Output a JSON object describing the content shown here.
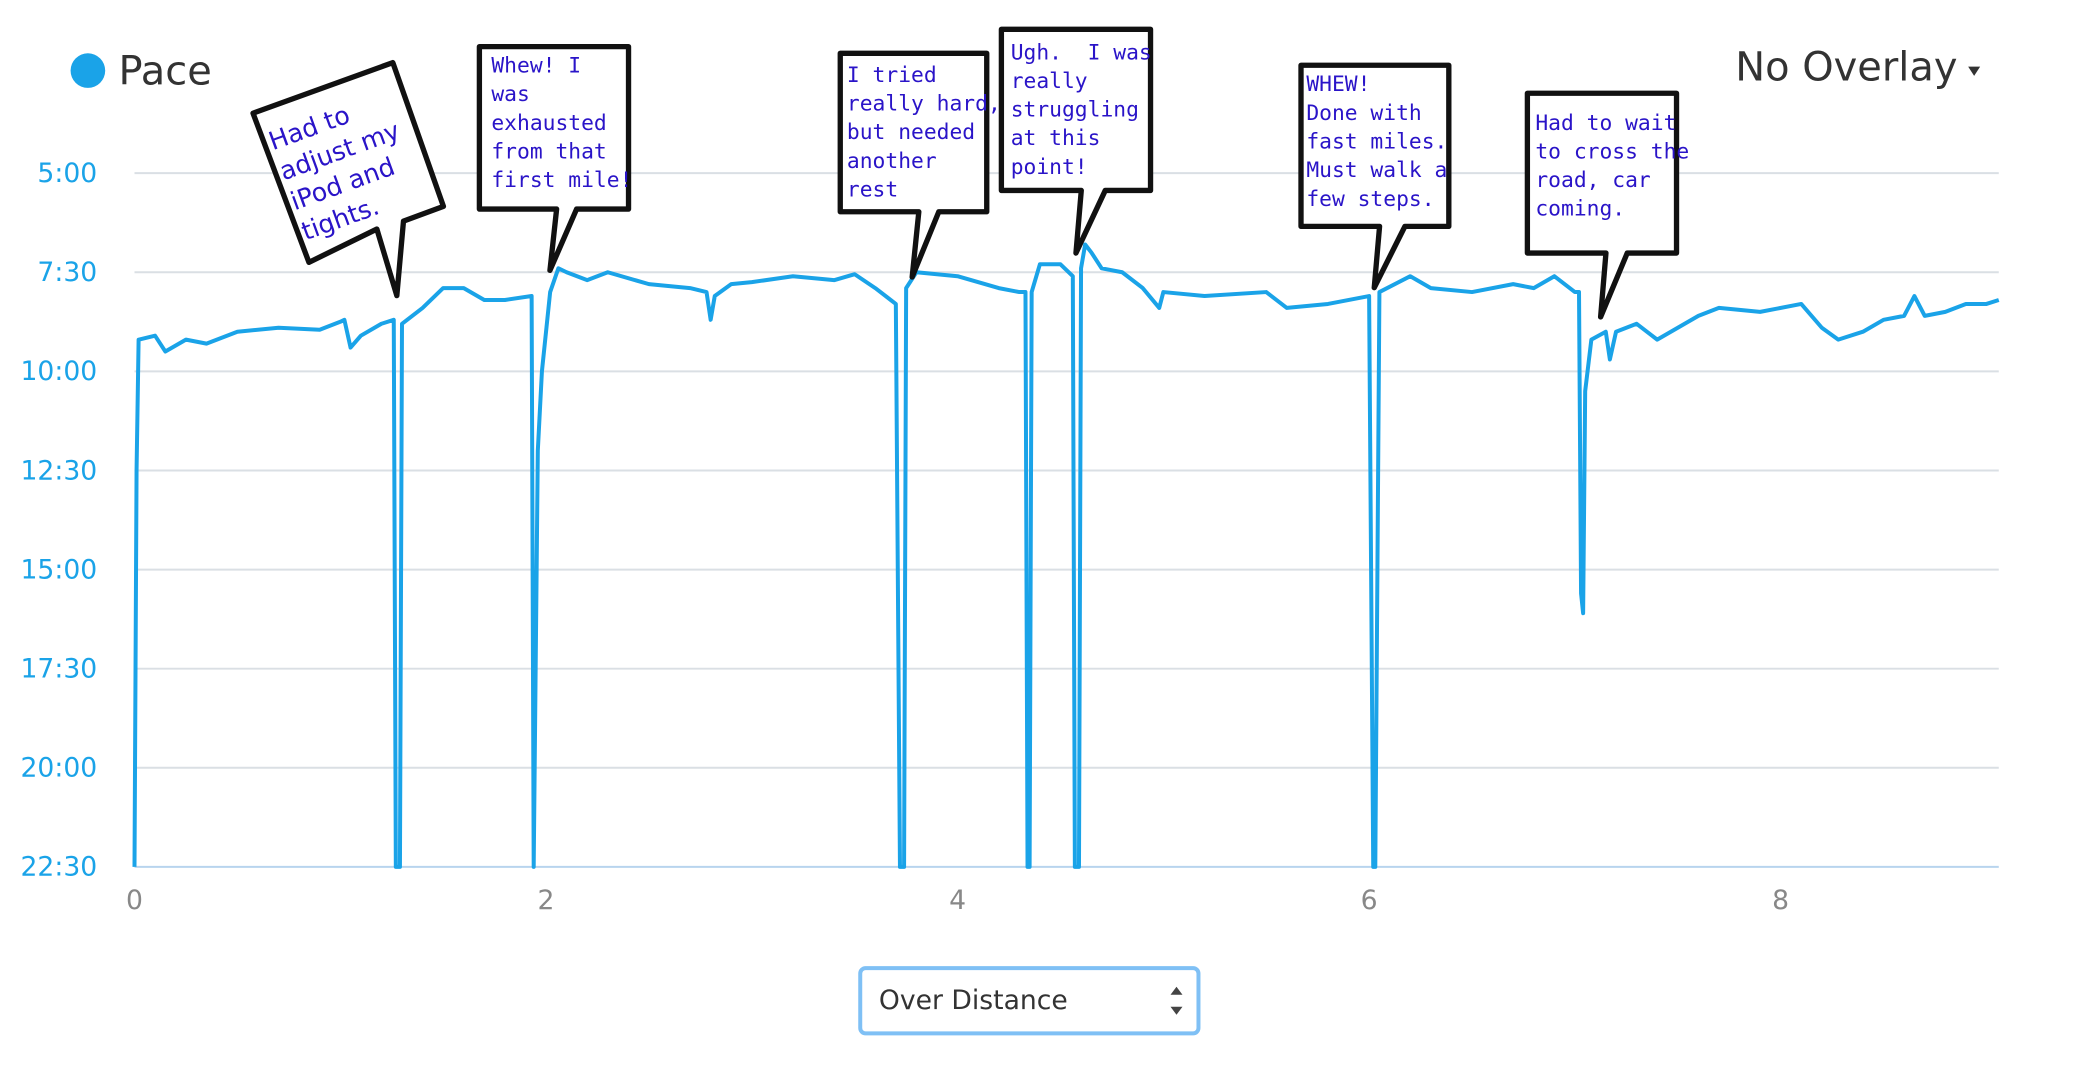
{
  "chart_data": {
    "type": "line",
    "overlay": "No Overlay",
    "view_selector": "Over Distance",
    "x": [
      0,
      0.01,
      0.02,
      0.1,
      0.15,
      0.25,
      0.35,
      0.5,
      0.7,
      0.9,
      1.0,
      1.02,
      1.05,
      1.1,
      1.2,
      1.26,
      1.27,
      1.29,
      1.3,
      1.4,
      1.5,
      1.6,
      1.7,
      1.8,
      1.93,
      1.94,
      1.96,
      1.98,
      2.02,
      2.06,
      2.1,
      2.2,
      2.3,
      2.5,
      2.7,
      2.78,
      2.8,
      2.82,
      2.9,
      3.0,
      3.2,
      3.4,
      3.5,
      3.6,
      3.7,
      3.72,
      3.74,
      3.75,
      3.8,
      4.0,
      4.2,
      4.3,
      4.33,
      4.34,
      4.35,
      4.36,
      4.4,
      4.5,
      4.56,
      4.57,
      4.59,
      4.6,
      4.62,
      4.65,
      4.7,
      4.8,
      4.9,
      4.98,
      5.0,
      5.2,
      5.5,
      5.6,
      5.8,
      6.0,
      6.02,
      6.03,
      6.05,
      6.2,
      6.3,
      6.5,
      6.7,
      6.8,
      6.9,
      7.0,
      7.02,
      7.03,
      7.04,
      7.05,
      7.08,
      7.15,
      7.17,
      7.2,
      7.3,
      7.4,
      7.5,
      7.6,
      7.7,
      7.9,
      8.1,
      8.2,
      8.28,
      8.4,
      8.5,
      8.6,
      8.65,
      8.7,
      8.8,
      8.9,
      9.0,
      9.06
    ],
    "series": [
      {
        "name": "Pace",
        "color": "#1aa3e8",
        "values": [
          22.5,
          12.5,
          9.2,
          9.1,
          9.5,
          9.2,
          9.3,
          9.0,
          8.9,
          8.95,
          8.75,
          8.7,
          9.4,
          9.1,
          8.8,
          8.7,
          22.5,
          22.5,
          8.8,
          8.4,
          7.9,
          7.9,
          8.2,
          8.2,
          8.1,
          22.5,
          12,
          10,
          8,
          7.4,
          7.5,
          7.7,
          7.5,
          7.8,
          7.9,
          8.0,
          8.7,
          8.1,
          7.8,
          7.75,
          7.6,
          7.7,
          7.55,
          7.9,
          8.3,
          22.5,
          22.5,
          7.9,
          7.5,
          7.6,
          7.9,
          8.0,
          8.0,
          22.5,
          22.5,
          8.0,
          7.3,
          7.3,
          7.6,
          22.5,
          22.5,
          7.4,
          6.8,
          7.0,
          7.4,
          7.5,
          7.9,
          8.4,
          8.0,
          8.1,
          8.0,
          8.4,
          8.3,
          8.1,
          22.5,
          22.5,
          8.0,
          7.6,
          7.9,
          8.0,
          7.8,
          7.9,
          7.6,
          8.0,
          8.0,
          15.6,
          16.1,
          10.5,
          9.2,
          9.0,
          9.7,
          9.0,
          8.8,
          9.2,
          8.9,
          8.6,
          8.4,
          8.5,
          8.3,
          8.9,
          9.2,
          9.0,
          8.7,
          8.6,
          8.1,
          8.6,
          8.5,
          8.3,
          8.3,
          8.2
        ]
      }
    ],
    "xlim": [
      0,
      9.06
    ],
    "xticks": [
      0,
      2,
      4,
      6,
      8
    ],
    "ylim": [
      22.5,
      5
    ],
    "yticks": [
      {
        "value": 5,
        "label": "5:00"
      },
      {
        "value": 7.5,
        "label": "7:30"
      },
      {
        "value": 10,
        "label": "10:00"
      },
      {
        "value": 12.5,
        "label": "12:30"
      },
      {
        "value": 15,
        "label": "15:00"
      },
      {
        "value": 17.5,
        "label": "17:30"
      },
      {
        "value": 20,
        "label": "20:00"
      },
      {
        "value": 22.5,
        "label": "22:30"
      }
    ],
    "grid": true,
    "annotations": [
      {
        "lines": [
          "Had to",
          "adjust my",
          "iPod and",
          "tights."
        ]
      },
      {
        "lines": [
          "Whew! I",
          "was",
          "exhausted",
          "from that",
          "first mile!"
        ]
      },
      {
        "lines": [
          "I tried",
          "really hard,",
          "but needed",
          "another",
          "rest"
        ]
      },
      {
        "lines": [
          "Ugh.  I was",
          "really",
          "struggling",
          "at this",
          "point!"
        ]
      },
      {
        "lines": [
          "WHEW!",
          "Done with",
          "fast miles.",
          "Must walk a",
          "few steps."
        ]
      },
      {
        "lines": [
          "Had to wait",
          "to cross the",
          "road, car",
          "coming."
        ]
      }
    ]
  }
}
